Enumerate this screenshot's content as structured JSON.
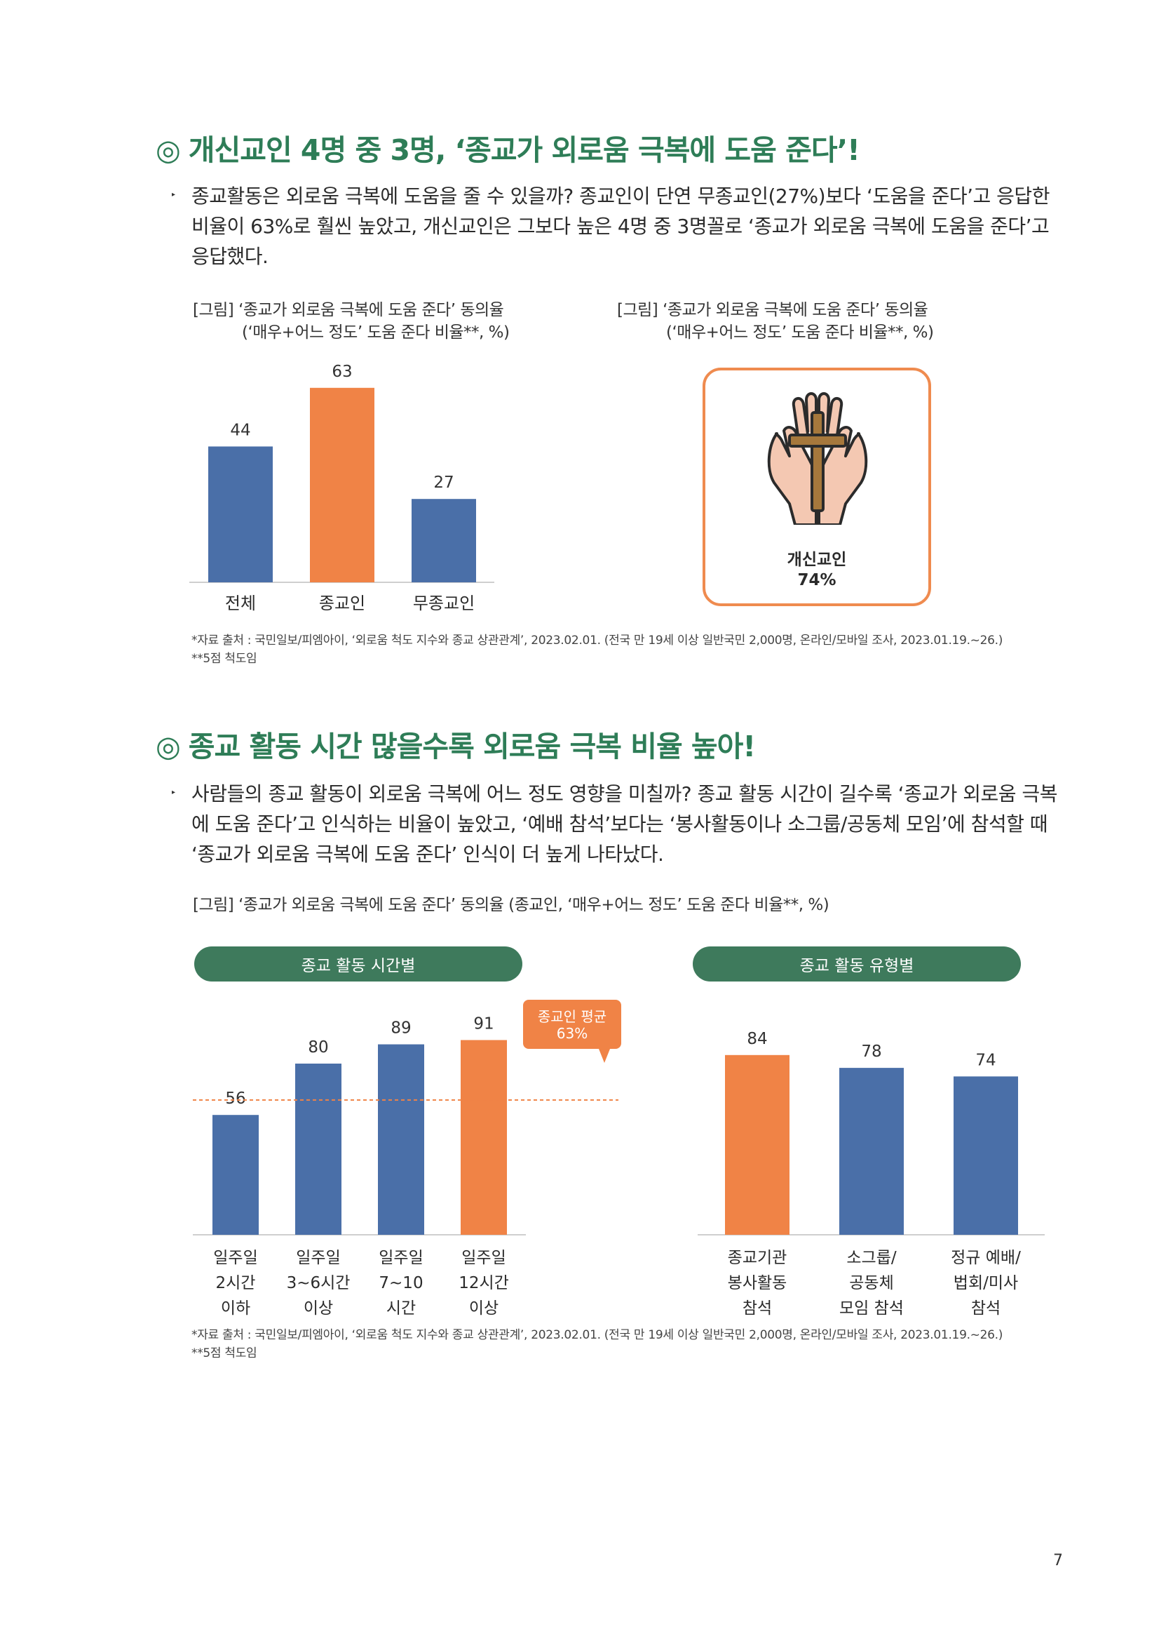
{
  "section1": {
    "mark": "◎",
    "title": "개신교인 4명 중 3명, ‘종교가 외로움 극복에 도움 준다’!",
    "bullet": "▸",
    "paragraph": "종교활동은 외로움 극복에 도움을 줄 수 있을까? 종교인이 단연 무종교인(27%)보다 ‘도움을 준다’고 응답한 비율이 63%로 훨씬 높았고, 개신교인은 그보다 높은 4명 중 3명꼴로 ‘종교가 외로움 극복에 도움을 준다’고 응답했다.",
    "caption_left_1": "[그림] ‘종교가 외로움 극복에 도움 준다’ 동의율",
    "caption_left_2": "(‘매우+어느 정도’ 도움 준다 비율**, %)",
    "caption_right_1": "[그림] ‘종교가 외로움 극복에 도움 준다’ 동의율",
    "caption_right_2": "(‘매우+어느 정도’ 도움 준다 비율**, %)",
    "card_label": "개신교인",
    "card_value": "74%",
    "card_icon": "praying-hands-cross-icon",
    "source_1": "*자료 출처 : 국민일보/피엠아이, ‘외로움 척도 지수와 종교 상관관계’, 2023.02.01. (전국 만 19세 이상 일반국민 2,000명, 온라인/모바일 조사, 2023.01.19.~26.)",
    "source_2": "**5점 척도임"
  },
  "section2": {
    "mark": "◎",
    "title": "종교 활동 시간 많을수록 외로움 극복 비율 높아!",
    "bullet": "▸",
    "paragraph": "사람들의 종교 활동이 외로움 극복에 어느 정도 영향을 미칠까? 종교 활동 시간이 길수록 ‘종교가 외로움 극복에 도움 준다’고 인식하는 비율이 높았고, ‘예배 참석’보다는 ‘봉사활동이나 소그룹/공동체 모임’에 참석할 때 ‘종교가 외로움 극복에 도움 준다’ 인식이 더 높게 나타났다.",
    "caption": "[그림] ‘종교가 외로움 극복에 도움 준다’ 동의율 (종교인, ‘매우+어느 정도’ 도움 준다 비율**, %)",
    "pill_left": "종교 활동 시간별",
    "pill_right": "종교 활동 유형별",
    "avg_label_1": "종교인 평균",
    "avg_label_2": "63%",
    "source_1": "*자료 출처 : 국민일보/피엠아이, ‘외로움 척도 지수와 종교 상관관계’, 2023.02.01. (전국 만 19세 이상 일반국민 2,000명, 온라인/모바일 조사, 2023.01.19.~26.)",
    "source_2": "**5점 척도임"
  },
  "page_number": "7",
  "colors": {
    "blue": "#4a6fa8",
    "orange": "#f08346",
    "green": "#2e7d57",
    "pill": "#3e7a5c"
  },
  "chart_data": [
    {
      "type": "bar",
      "categories": [
        "전체",
        "종교인",
        "무종교인"
      ],
      "values": [
        44,
        63,
        27
      ],
      "colors": [
        "#4a6fa8",
        "#f08346",
        "#4a6fa8"
      ],
      "ylim": [
        0,
        70
      ]
    },
    {
      "type": "bar",
      "categories": [
        [
          "일주일",
          "2시간",
          "이하"
        ],
        [
          "일주일",
          "3~6시간",
          "이상"
        ],
        [
          "일주일",
          "7~10",
          "시간"
        ],
        [
          "일주일",
          "12시간",
          "이상"
        ]
      ],
      "values": [
        56,
        80,
        89,
        91
      ],
      "colors": [
        "#4a6fa8",
        "#4a6fa8",
        "#4a6fa8",
        "#f08346"
      ],
      "reference_line": 63,
      "ylim": [
        0,
        100
      ]
    },
    {
      "type": "bar",
      "categories": [
        [
          "종교기관",
          "봉사활동",
          "참석"
        ],
        [
          "소그룹/",
          "공동체",
          "모임 참석"
        ],
        [
          "정규 예배/",
          "법회/미사",
          "참석"
        ]
      ],
      "values": [
        84,
        78,
        74
      ],
      "colors": [
        "#f08346",
        "#4a6fa8",
        "#4a6fa8"
      ],
      "ylim": [
        0,
        100
      ]
    }
  ]
}
